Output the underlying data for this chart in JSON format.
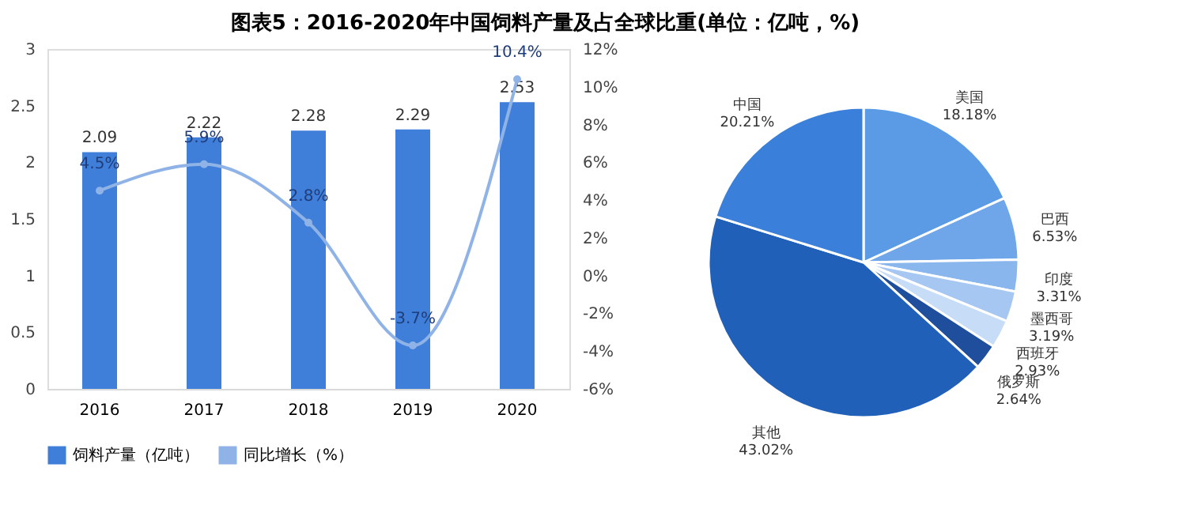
{
  "chart_data": [
    {
      "type": "bar",
      "title": "图表5：2016-2020年中国饲料产量及占全球比重(单位：亿吨，%)",
      "categories": [
        "2016",
        "2017",
        "2018",
        "2019",
        "2020"
      ],
      "series": [
        {
          "name": "饲料产量（亿吨）",
          "type": "bar",
          "color": "#3f7fd9",
          "values": [
            2.09,
            2.22,
            2.28,
            2.29,
            2.53
          ],
          "value_labels": [
            "2.09",
            "2.22",
            "2.28",
            "2.29",
            "2.53"
          ]
        },
        {
          "name": "同比增长（%）",
          "type": "line",
          "axis": "y2",
          "color": "#8fb3e6",
          "values": [
            4.5,
            5.9,
            2.8,
            -3.7,
            10.4
          ],
          "value_labels": [
            "4.5%",
            "5.9%",
            "2.8%",
            "-3.7%",
            "10.4%"
          ]
        }
      ],
      "ylim": [
        0,
        3
      ],
      "yticks": [
        0,
        0.5,
        1,
        1.5,
        2,
        2.5,
        3
      ],
      "y2lim": [
        -6,
        12
      ],
      "y2ticks": [
        {
          "value": -6,
          "label": "-6%"
        },
        {
          "value": -4,
          "label": "-4%"
        },
        {
          "value": -2,
          "label": "-2%"
        },
        {
          "value": 0,
          "label": "0%"
        },
        {
          "value": 2,
          "label": "2%"
        },
        {
          "value": 4,
          "label": "4%"
        },
        {
          "value": 6,
          "label": "6%"
        },
        {
          "value": 8,
          "label": "8%"
        },
        {
          "value": 10,
          "label": "10%"
        },
        {
          "value": 12,
          "label": "12%"
        }
      ],
      "legend": "bottom",
      "grid": false,
      "marker": "circle",
      "line_style": "solid"
    },
    {
      "type": "pie",
      "categories": [
        "美国",
        "巴西",
        "印度",
        "墨西哥",
        "西班牙",
        "俄罗斯",
        "其他",
        "中国"
      ],
      "values": [
        18.18,
        6.53,
        3.31,
        3.19,
        2.93,
        2.64,
        43.02,
        20.21
      ],
      "value_labels": [
        "18.18%",
        "6.53%",
        "3.31%",
        "3.19%",
        "2.93%",
        "2.64%",
        "43.02%",
        "20.21%"
      ],
      "colors": [
        "#5b9be6",
        "#6fa6ea",
        "#8ab6ee",
        "#a5c7f2",
        "#c6dcf7",
        "#1f4e9c",
        "#2160b8",
        "#3a7fd9"
      ],
      "legend": false
    }
  ]
}
